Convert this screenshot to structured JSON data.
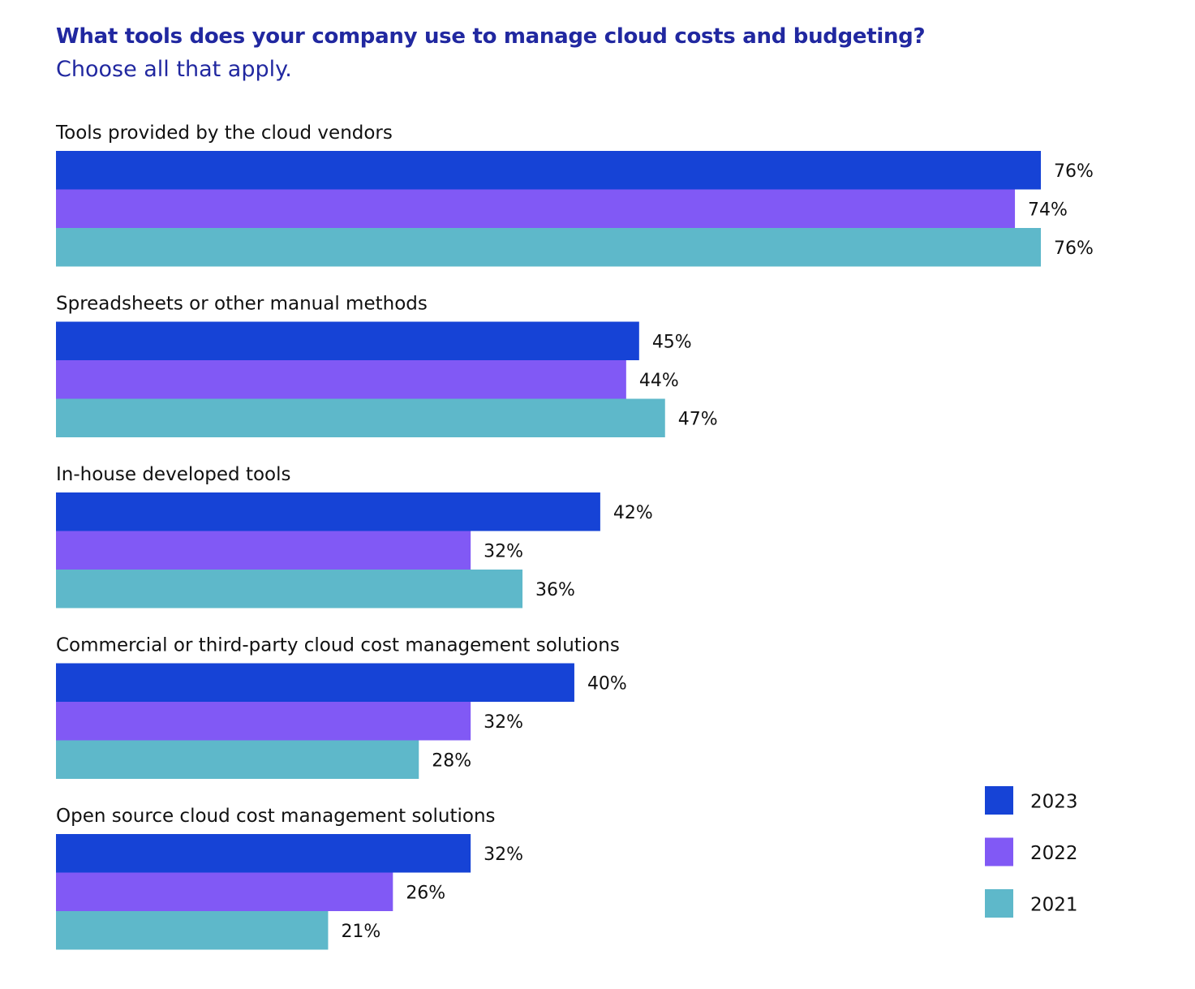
{
  "chart_data": {
    "type": "bar",
    "orientation": "horizontal",
    "title": "What tools does your company use to manage cloud costs and budgeting?",
    "subtitle": "Choose all that apply.",
    "categories": [
      "Tools provided by the cloud vendors",
      "Spreadsheets or other manual methods",
      "In-house developed tools",
      "Commercial or third-party cloud cost management solutions",
      "Open source cloud cost management solutions"
    ],
    "series": [
      {
        "name": "2023",
        "color": "#1643d6",
        "values": [
          76,
          45,
          42,
          40,
          32
        ],
        "labels": [
          "76%",
          "45%",
          "42%",
          "40%",
          "32%"
        ]
      },
      {
        "name": "2022",
        "color": "#8159f5",
        "values": [
          74,
          44,
          32,
          32,
          26
        ],
        "labels": [
          "74%",
          "44%",
          "32%",
          "32%",
          "26%"
        ]
      },
      {
        "name": "2021",
        "color": "#5eb8ca",
        "values": [
          76,
          47,
          36,
          28,
          21
        ],
        "labels": [
          "76%",
          "47%",
          "36%",
          "28%",
          "21%"
        ]
      }
    ],
    "value_unit": "%",
    "xlim": [
      0,
      76
    ],
    "grid": false,
    "legend": {
      "placement": "bottom-right",
      "entries": [
        "2023",
        "2022",
        "2021"
      ]
    }
  }
}
